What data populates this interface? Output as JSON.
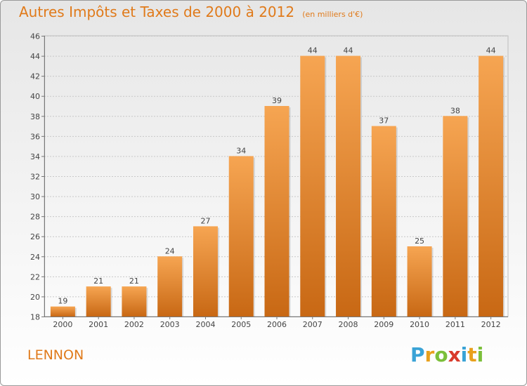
{
  "header": {
    "title": "Autres Impôts et Taxes de 2000 à 2012",
    "unit": "(en milliers d'€)"
  },
  "footer": {
    "commune": "LENNON",
    "logo": {
      "text": "Proxiti",
      "letters": [
        {
          "ch": "P",
          "color": "#3aa3d6"
        },
        {
          "ch": "r",
          "color": "#e8a01c"
        },
        {
          "ch": "o",
          "color": "#7bbf3a"
        },
        {
          "ch": "x",
          "color": "#d93a2b"
        },
        {
          "ch": "i",
          "color": "#3aa3d6"
        },
        {
          "ch": "t",
          "color": "#e8a01c"
        },
        {
          "ch": "i",
          "color": "#7bbf3a"
        }
      ]
    }
  },
  "colors": {
    "accent": "#e07a1a",
    "bar_top": "#f6a552",
    "bar_bottom": "#c86814",
    "grid": "#c8c8c8"
  },
  "chart_data": {
    "type": "bar",
    "title": "Autres Impôts et Taxes de 2000 à 2012",
    "subtitle": "(en milliers d'€)",
    "categories": [
      "2000",
      "2001",
      "2002",
      "2003",
      "2004",
      "2005",
      "2006",
      "2007",
      "2008",
      "2009",
      "2010",
      "2011",
      "2012"
    ],
    "values": [
      19,
      21,
      21,
      24,
      27,
      34,
      39,
      44,
      44,
      37,
      25,
      38,
      44
    ],
    "ylim": [
      18,
      46
    ],
    "yticks": [
      18,
      20,
      22,
      24,
      26,
      28,
      30,
      32,
      34,
      36,
      38,
      40,
      42,
      44,
      46
    ],
    "xlabel": "",
    "ylabel": "",
    "grid": true,
    "data_labels": true
  }
}
